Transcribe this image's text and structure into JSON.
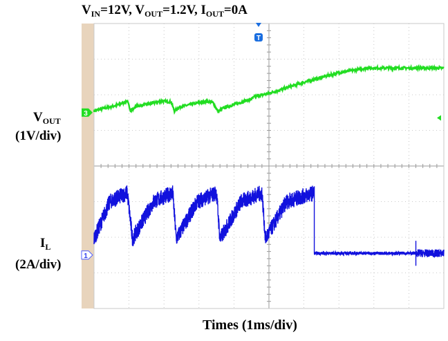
{
  "chart_data": {
    "type": "line",
    "title": {
      "vin_main": "V",
      "vin_sub": "IN",
      "vin_val": "=12V, ",
      "vout_main": "V",
      "vout_sub": "OUT",
      "vout_val": "=1.2V, ",
      "iout_main": "I",
      "iout_sub": "OUT",
      "iout_val": "=0A"
    },
    "xlabel": "Times (1ms/div)",
    "x_unit_ms_per_div": 1,
    "x_range_div": [
      0,
      10
    ],
    "y_range_div": [
      0,
      8
    ],
    "trigger_marker": "T",
    "colors": {
      "vout": "#22dd22",
      "il": "#1111dd",
      "grid": "#b8b8b8",
      "sidebar": "#e8d4bc"
    },
    "series": [
      {
        "channel": "3",
        "label_main": "V",
        "label_sub": "OUT",
        "label_scale": "(1V/div)",
        "ground_div": 5.5,
        "points_div": [
          [
            0.0,
            5.55
          ],
          [
            0.7,
            5.72
          ],
          [
            0.95,
            5.82
          ],
          [
            1.05,
            5.55
          ],
          [
            1.2,
            5.67
          ],
          [
            1.95,
            5.82
          ],
          [
            2.2,
            5.8
          ],
          [
            2.3,
            5.54
          ],
          [
            2.45,
            5.66
          ],
          [
            3.2,
            5.82
          ],
          [
            3.4,
            5.78
          ],
          [
            3.55,
            5.52
          ],
          [
            3.7,
            5.63
          ],
          [
            4.5,
            5.88
          ],
          [
            4.6,
            5.95
          ],
          [
            5.0,
            6.04
          ],
          [
            6.0,
            6.35
          ],
          [
            7.0,
            6.62
          ],
          [
            7.8,
            6.75
          ],
          [
            10.0,
            6.75
          ]
        ],
        "offset_note_points_div": [
          [
            0,
            0
          ]
        ]
      },
      {
        "channel": "1",
        "label_main": "I",
        "label_sub": "L",
        "label_scale": "(2A/div)",
        "ground_div": 1.5,
        "cycles": [
          {
            "rise_start": 0.0,
            "peak_start": 0.45,
            "peak_end": 0.95,
            "fall_end": 1.1
          },
          {
            "rise_start": 1.1,
            "peak_start": 1.7,
            "peak_end": 2.25,
            "fall_end": 2.35
          },
          {
            "rise_start": 2.35,
            "peak_start": 2.95,
            "peak_end": 3.5,
            "fall_end": 3.6
          },
          {
            "rise_start": 3.6,
            "peak_start": 4.2,
            "peak_end": 4.8,
            "fall_end": 4.9
          },
          {
            "rise_start": 4.9,
            "peak_start": 5.5,
            "peak_end": 6.3,
            "fall_end": 6.3
          }
        ],
        "valley_div": 1.95,
        "peak_div": 3.25,
        "stop_time_div": 6.3,
        "tail_level_div": 1.55,
        "spike_time_div": 9.2,
        "after_spike_noise_div": 0.22
      }
    ]
  }
}
